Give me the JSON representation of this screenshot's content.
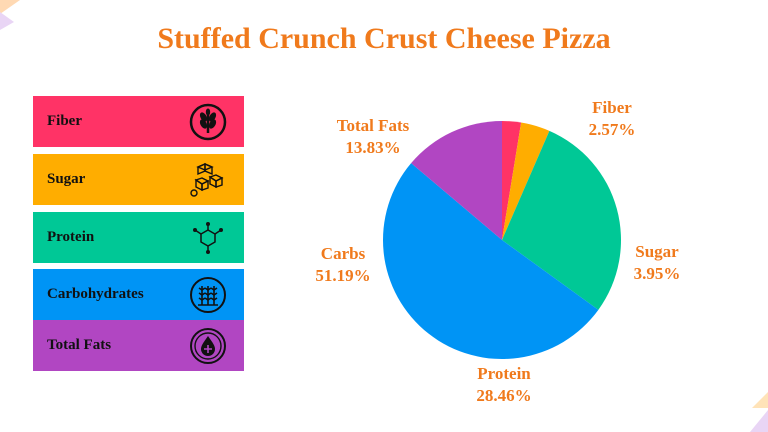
{
  "title": "Stuffed Crunch Crust Cheese Pizza",
  "legend": [
    {
      "label": "Fiber",
      "color": "#ff3366",
      "icon": "wheat-icon"
    },
    {
      "label": "Sugar",
      "color": "#ffad00",
      "icon": "sugar-cubes-icon"
    },
    {
      "label": "Protein",
      "color": "#00c896",
      "icon": "molecule-icon"
    },
    {
      "label": "Carbohydrates",
      "color": "#0094f5",
      "icon": "grain-icon"
    },
    {
      "label": "Total Fats",
      "color": "#b146c2",
      "icon": "fat-drop-icon"
    }
  ],
  "chart_data": {
    "type": "pie",
    "title": "Stuffed Crunch Crust Cheese Pizza",
    "slices": [
      {
        "name": "Fiber",
        "label": "Fiber",
        "value": 2.57,
        "value_label": "2.57%",
        "color": "#ff3366"
      },
      {
        "name": "Sugar",
        "label": "Sugar",
        "value": 3.95,
        "value_label": "3.95%",
        "color": "#ffad00"
      },
      {
        "name": "Protein",
        "label": "Protein",
        "value": 28.46,
        "value_label": "28.46%",
        "color": "#00c896"
      },
      {
        "name": "Carbohydrates",
        "label": "Carbs",
        "value": 51.19,
        "value_label": "51.19%",
        "color": "#0094f5"
      },
      {
        "name": "Total Fats",
        "label": "Total Fats",
        "value": 13.83,
        "value_label": "13.83%",
        "color": "#b146c2"
      }
    ],
    "start": "top",
    "direction": "clockwise"
  }
}
